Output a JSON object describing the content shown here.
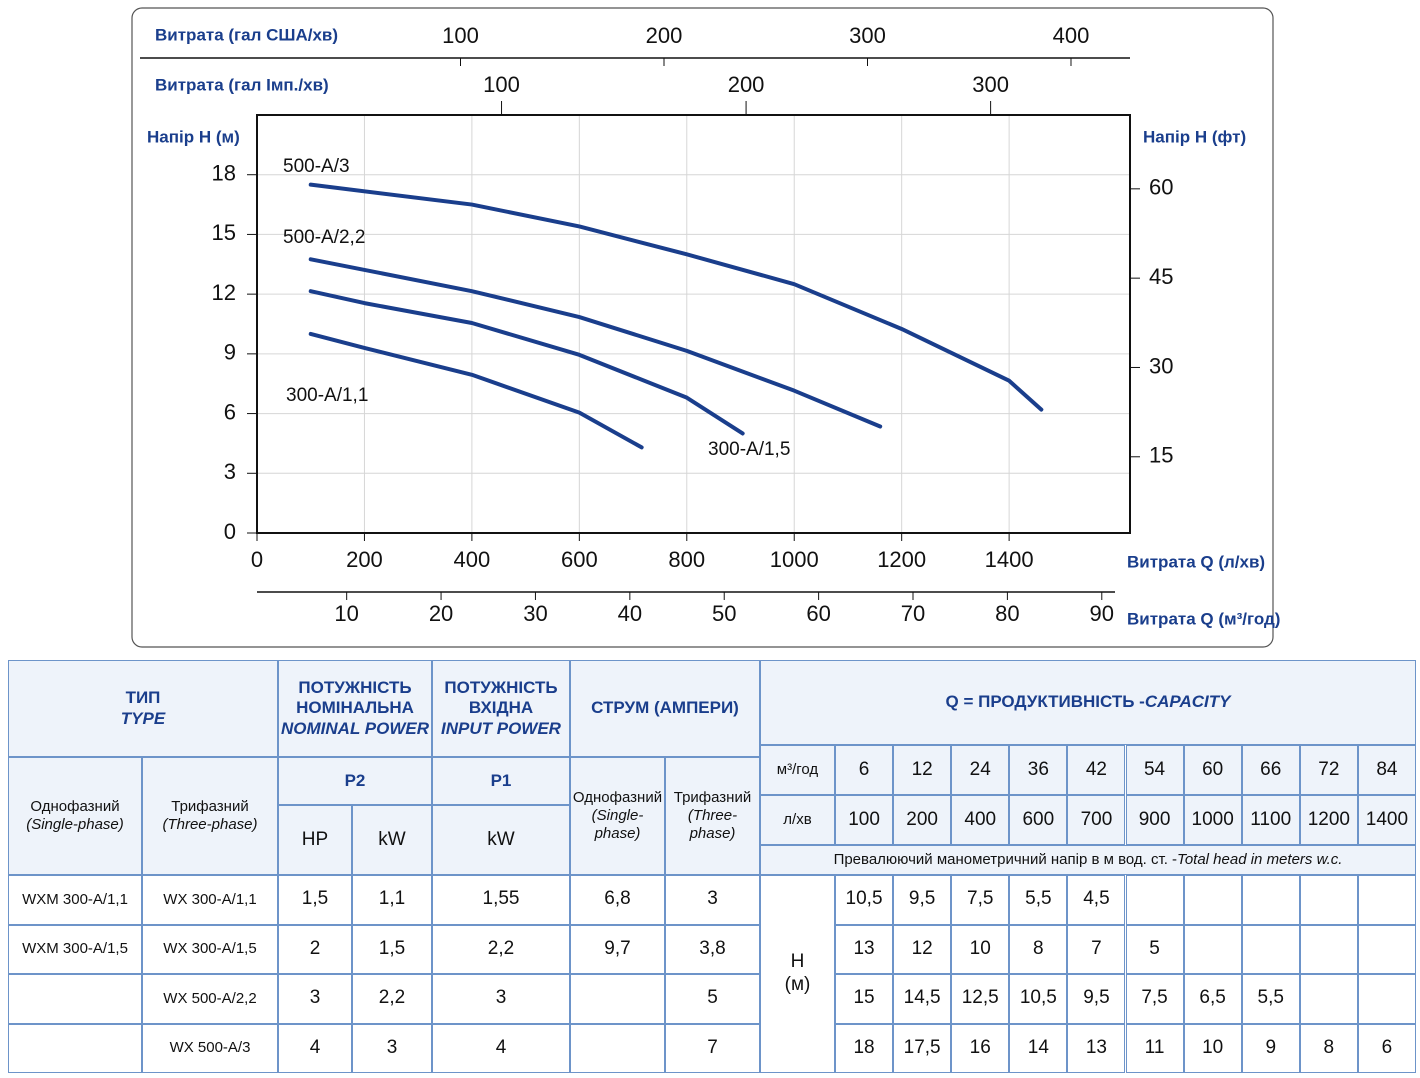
{
  "chart_data": {
    "type": "line",
    "xlabel": "Витрата Q (л/хв)",
    "ylabel": "Напір H (м)",
    "y2label": "Напір H (фт)",
    "xlim": [
      0,
      1625
    ],
    "xticks": [
      0,
      200,
      400,
      600,
      800,
      1000,
      1200,
      1400
    ],
    "ylim": [
      0,
      21
    ],
    "yticks": [
      0,
      3,
      6,
      9,
      12,
      15,
      18
    ],
    "y2lim": [
      2.2,
      72.4
    ],
    "y2ticks": [
      15,
      30,
      45,
      60
    ],
    "grid": true,
    "secondary_x_axes": [
      {
        "title": "Витрата (гал США/хв)",
        "lim": [
          0,
          429
        ],
        "ticks": [
          100,
          200,
          300,
          400
        ]
      },
      {
        "title": "Витрата (гал Імп./хв)",
        "lim": [
          0,
          357
        ],
        "ticks": [
          100,
          200,
          300
        ]
      },
      {
        "title": "Витрата Q (м³/год)",
        "lim": [
          0.5,
          91.4
        ],
        "ticks": [
          10,
          20,
          30,
          40,
          50,
          60,
          70,
          80,
          90
        ]
      }
    ],
    "series": [
      {
        "name": "500-A/3",
        "color": "#1a3e8c",
        "x": [
          100,
          400,
          600,
          800,
          1000,
          1200,
          1400,
          1460
        ],
        "values": [
          17.5,
          16.5,
          15.4,
          14.0,
          12.5,
          10.25,
          7.65,
          6.2
        ]
      },
      {
        "name": "500-A/2,2",
        "color": "#1a3e8c",
        "x": [
          100,
          400,
          600,
          800,
          1000,
          1160
        ],
        "values": [
          13.75,
          12.15,
          10.85,
          9.15,
          7.15,
          5.35
        ]
      },
      {
        "name": "300-A/1,5",
        "color": "#1a3e8c",
        "x": [
          100,
          200,
          400,
          600,
          800,
          904
        ],
        "values": [
          12.15,
          11.55,
          10.55,
          8.95,
          6.8,
          5.0
        ]
      },
      {
        "name": "300-A/1,1",
        "color": "#1a3e8c",
        "x": [
          100,
          200,
          400,
          600,
          716
        ],
        "values": [
          10.0,
          9.3,
          7.95,
          6.05,
          4.3
        ]
      }
    ]
  },
  "table": {
    "type_header": {
      "ua": "ТИП",
      "en": "TYPE"
    },
    "type_columns": [
      {
        "ua": "Однофазний",
        "en": "(Single-phase)"
      },
      {
        "ua": "Трифазний",
        "en": "(Three-phase)"
      }
    ],
    "nominal_power": {
      "ua": "ПОТУЖНІСТЬ НОМІНАЛЬНА",
      "en": "NOMINAL POWER",
      "symbol": "P2",
      "units": [
        "HP",
        "kW"
      ]
    },
    "input_power": {
      "ua": "ПОТУЖНІСТЬ ВХІДНА",
      "en": "INPUT POWER",
      "symbol": "P1",
      "units": [
        "kW"
      ]
    },
    "current": {
      "ua": "СТРУМ (АМПЕРИ)",
      "columns": [
        {
          "ua": "Однофазний",
          "en": "(Single-phase)"
        },
        {
          "ua": "Трифазний",
          "en": "(Three-phase)"
        }
      ]
    },
    "capacity": {
      "ua": "Q = ПРОДУКТИВНІСТЬ - ",
      "en": "CAPACITY",
      "units": [
        "м³/год",
        "л/хв"
      ],
      "m3h": [
        6,
        12,
        24,
        36,
        42,
        54,
        60,
        66,
        72,
        84
      ],
      "lmin": [
        100,
        200,
        400,
        600,
        700,
        900,
        1000,
        1100,
        1200,
        1400
      ]
    },
    "head_note": {
      "ua": "Превалюючий манометричний напір в м вод. ст. - ",
      "en": "Total head in meters w.c."
    },
    "head_label": {
      "symbol": "H",
      "unit": "(м)"
    },
    "rows": [
      [
        "WXM 300-A/1,1",
        "WX 300-A/1,1",
        "1,5",
        "1,1",
        "1,55",
        "6,8",
        "3",
        "10,5",
        "9,5",
        "7,5",
        "5,5",
        "4,5",
        null,
        null,
        null,
        null,
        null
      ],
      [
        "WXM 300-A/1,5",
        "WX 300-A/1,5",
        "2",
        "1,5",
        "2,2",
        "9,7",
        "3,8",
        "13",
        "12",
        "10",
        "8",
        "7",
        "5",
        null,
        null,
        null,
        null
      ],
      [
        null,
        "WX 500-A/2,2",
        "3",
        "2,2",
        "3",
        null,
        "5",
        "15",
        "14,5",
        "12,5",
        "10,5",
        "9,5",
        "7,5",
        "6,5",
        "5,5",
        null,
        null
      ],
      [
        null,
        "WX 500-A/3",
        "4",
        "3",
        "4",
        null,
        "7",
        "18",
        "17,5",
        "16",
        "14",
        "13",
        "11",
        "10",
        "9",
        "8",
        "6"
      ]
    ]
  }
}
